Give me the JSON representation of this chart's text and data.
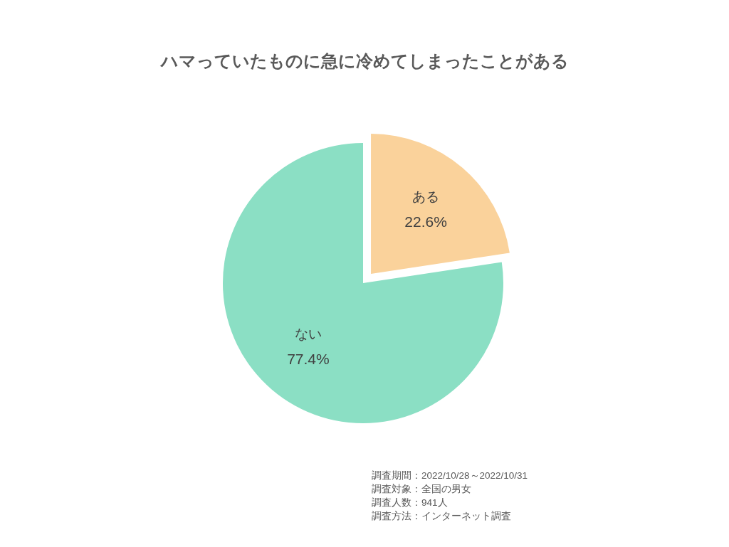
{
  "chart_data": {
    "type": "pie",
    "title": "ハマっていたものに急に冷めてしまったことがある",
    "categories": [
      "ある",
      "ない"
    ],
    "values": [
      22.6,
      77.4
    ],
    "colors": [
      "#fad29b",
      "#8bdfc4"
    ],
    "value_labels": [
      "22.6%",
      "77.4%"
    ],
    "annotations": [
      "調査期間：2022/10/28～2022/10/31",
      "調査対象：全国の男女",
      "調査人数：941人",
      "調査方法：インターネット調査"
    ]
  }
}
